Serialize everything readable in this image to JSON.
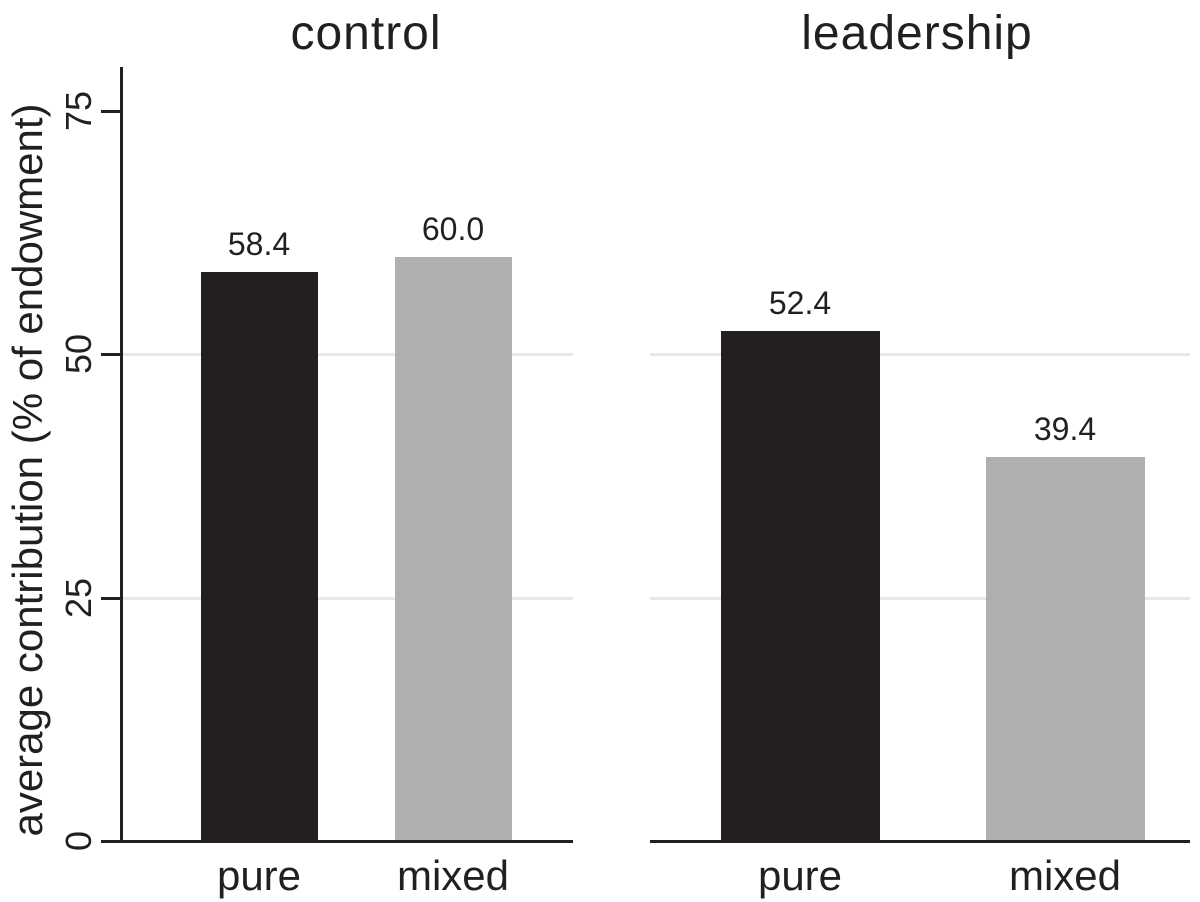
{
  "chart_data": {
    "type": "bar",
    "ylabel": "average contribution (% of endowment)",
    "xlabel": "",
    "ylim": [
      0,
      77
    ],
    "yticks": [
      0,
      25,
      50,
      75
    ],
    "gridlines_at": [
      25,
      50
    ],
    "grid": true,
    "legend": "none",
    "categories": [
      "pure",
      "mixed"
    ],
    "panels": [
      {
        "title": "control",
        "values": [
          58.4,
          60.0
        ],
        "labels": [
          "58.4",
          "60.0"
        ]
      },
      {
        "title": "leadership",
        "values": [
          52.4,
          39.4
        ],
        "labels": [
          "52.4",
          "39.4"
        ]
      }
    ],
    "bar_colors": {
      "pure": "#231f20",
      "mixed": "#aeafb1"
    }
  },
  "colors": {
    "background": "#ffffff",
    "axis": "#231f20",
    "text": "#231f20",
    "gridline": "#e8e8e8",
    "bar_pure": "#231f20",
    "bar_mixed": "#aeafb1"
  }
}
